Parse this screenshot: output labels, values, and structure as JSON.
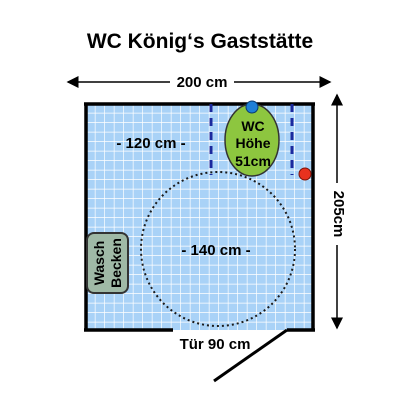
{
  "title": "WC König‘s Gaststätte",
  "dimensions": {
    "width": "200 cm",
    "height": "205cm",
    "door": "Tür 90 cm",
    "wall_clearance": "- 120 cm -",
    "turning_circle": "- 140 cm -"
  },
  "wc": {
    "line1": "WC",
    "line2": "Höhe",
    "line3": "51cm"
  },
  "sink": {
    "line1": "Wasch",
    "line2": "Becken"
  },
  "colors": {
    "tile_fill": "#a9d2f7",
    "tile_grid": "#ffffff",
    "wc_fill": "#8dc63f",
    "wc_marker": "#1e7fd6",
    "call_button": "#e8321e",
    "sink_fill": "#9fb9a6",
    "grab_bar": "#1c2a9e",
    "wall": "#000000"
  }
}
